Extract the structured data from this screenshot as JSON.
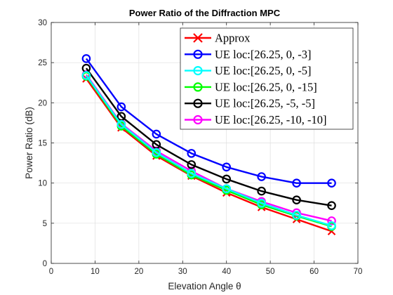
{
  "chart_data": {
    "type": "line",
    "title": "Power Ratio of the Diffraction MPC",
    "xlabel": "Elevation Angle θ",
    "ylabel": "Power Ratio (dB)",
    "xlim": [
      0,
      70
    ],
    "ylim": [
      0,
      30
    ],
    "xticks": [
      0,
      10,
      20,
      30,
      40,
      50,
      60,
      70
    ],
    "yticks": [
      0,
      5,
      10,
      15,
      20,
      25,
      30
    ],
    "grid": true,
    "legend_position": "top-right",
    "x": [
      8,
      16,
      24,
      32,
      40,
      48,
      56,
      64
    ],
    "series": [
      {
        "name": "Approx",
        "marker": "x",
        "color": "#ff0000",
        "values": [
          23.0,
          16.9,
          13.4,
          10.9,
          8.8,
          7.0,
          5.5,
          4.0
        ]
      },
      {
        "name": "UE loc:[26.25, 0, -3]",
        "marker": "o",
        "color": "#0000ff",
        "values": [
          25.5,
          19.5,
          16.1,
          13.7,
          12.0,
          10.8,
          10.0,
          10.0
        ]
      },
      {
        "name": "UE loc:[26.25, 0, -5]",
        "marker": "o",
        "color": "#00ffff",
        "values": [
          23.4,
          17.3,
          13.8,
          11.2,
          9.3,
          7.5,
          6.0,
          4.7
        ]
      },
      {
        "name": "UE loc:[26.25, 0, -15]",
        "marker": "o",
        "color": "#00ff00",
        "values": [
          23.3,
          17.1,
          13.6,
          11.0,
          9.1,
          7.3,
          5.9,
          4.6
        ]
      },
      {
        "name": "UE loc:[26.25, -5, -5]",
        "marker": "o",
        "color": "#000000",
        "values": [
          24.3,
          18.3,
          14.8,
          12.3,
          10.5,
          9.0,
          7.9,
          7.2
        ]
      },
      {
        "name": "UE loc:[26.25, -10, -10]",
        "marker": "o",
        "color": "#ff00ff",
        "values": [
          23.5,
          17.4,
          14.0,
          11.5,
          9.3,
          7.7,
          6.3,
          5.3
        ]
      }
    ]
  }
}
